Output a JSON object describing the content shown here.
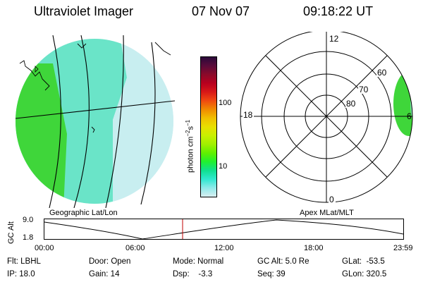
{
  "header": {
    "instrument": "Ultraviolet Imager",
    "date": "07 Nov 07",
    "time": "09:18:22 UT"
  },
  "colorbar": {
    "unit_label": "photon cm",
    "unit_exp1": "−2",
    "unit_s": "s",
    "unit_exp2": "−1",
    "ticks": [
      "100",
      "10"
    ],
    "colors": [
      "#2a0a3a",
      "#5a0b3a",
      "#8b0a2a",
      "#b8001f",
      "#d81818",
      "#f04a10",
      "#f08a00",
      "#f0c000",
      "#e8e000",
      "#c8f000",
      "#a0f000",
      "#60f000",
      "#20f030",
      "#10e090",
      "#30e8d0",
      "#90eaea",
      "#d8eef0"
    ]
  },
  "geo_map": {
    "label": "Geographic Lat/Lon",
    "colors": {
      "green": "#3fd63a",
      "cyan": "#4fe0c8",
      "pale": "#c8eef0"
    }
  },
  "polar_plot": {
    "label": "Apex MLat/MLT",
    "mlt_labels": {
      "top": "12",
      "left": "18",
      "right": "6",
      "bottom": "0"
    },
    "lat_labels": [
      "60",
      "70",
      "80"
    ]
  },
  "altitude_plot": {
    "ylabel": "GC Alt",
    "yticks": [
      "9.0",
      "1.8"
    ],
    "xticks": [
      "00:00",
      "06:00",
      "12:00",
      "18:00",
      "23:59"
    ],
    "marker_time": "09:18"
  },
  "info": {
    "filter": "Flt: LBHL",
    "ip": "IP: 18.0",
    "door": "Door: Open",
    "gain": "Gain: 14",
    "mode": "Mode: Normal",
    "dsp": "Dsp:    -3.3",
    "gc_alt": "GC Alt: 5.0 Re",
    "seq": "Seq: 39",
    "glat": "GLat:  -53.5",
    "glon": "GLon: 320.5"
  }
}
